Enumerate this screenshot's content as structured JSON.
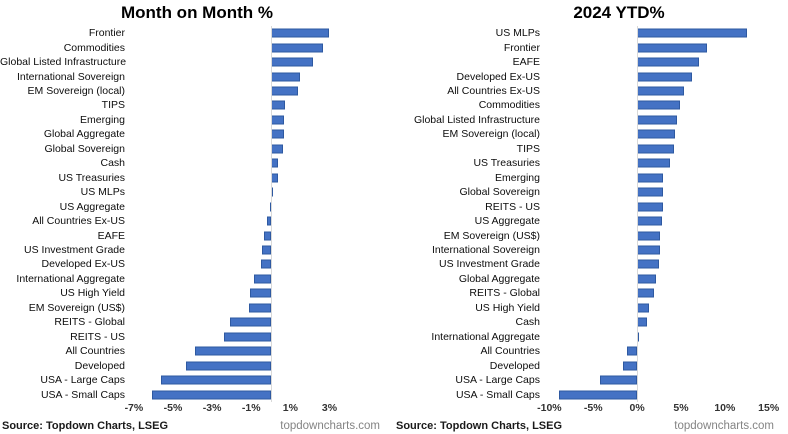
{
  "page": {
    "background": "#ffffff"
  },
  "chart_data": [
    {
      "type": "bar",
      "orientation": "horizontal",
      "title": "Month on Month %",
      "source": "Source: Topdown Charts, LSEG",
      "watermark": "topdowncharts.com",
      "bar_color": "#4472C4",
      "bar_border_color": "#2E59A1",
      "axis_line_color": "#D9D9D9",
      "grid": false,
      "legend": false,
      "xlim": [
        -7.2,
        6.3
      ],
      "ticks": [
        {
          "label": "-7%",
          "value": -7
        },
        {
          "label": "-5%",
          "value": -5
        },
        {
          "label": "-3%",
          "value": -3
        },
        {
          "label": "-1%",
          "value": -1
        },
        {
          "label": "1%",
          "value": 1
        },
        {
          "label": "3%",
          "value": 3
        }
      ],
      "categories": [
        "Frontier",
        "Commodities",
        "Global Listed Infrastructure",
        "International Sovereign",
        "EM Sovereign (local)",
        "TIPS",
        "Emerging",
        "Global Aggregate",
        "Global Sovereign",
        "Cash",
        "US Treasuries",
        "US MLPs",
        "US Aggregate",
        "All Countries Ex-US",
        "EAFE",
        "US Investment Grade",
        "Developed Ex-US",
        "International Aggregate",
        "US High Yield",
        "EM Sovereign (US$)",
        "REITS - Global",
        "REITS - US",
        "All Countries",
        "Developed",
        "USA - Large Caps",
        "USA - Small Caps"
      ],
      "values": [
        3.0,
        2.65,
        2.15,
        1.5,
        1.4,
        0.72,
        0.7,
        0.68,
        0.6,
        0.38,
        0.35,
        0.08,
        -0.05,
        -0.2,
        -0.35,
        -0.45,
        -0.5,
        -0.85,
        -1.05,
        -1.1,
        -2.1,
        -2.4,
        -3.9,
        -4.35,
        -5.6,
        -6.1
      ]
    },
    {
      "type": "bar",
      "orientation": "horizontal",
      "title": "2024 YTD%",
      "source": "Source: Topdown Charts, LSEG",
      "watermark": "topdowncharts.com",
      "bar_color": "#4472C4",
      "bar_border_color": "#2E59A1",
      "axis_line_color": "#D9D9D9",
      "grid": false,
      "legend": false,
      "xlim": [
        -10.5,
        17.2
      ],
      "ticks": [
        {
          "label": "-10%",
          "value": -10
        },
        {
          "label": "-5%",
          "value": -5
        },
        {
          "label": "0%",
          "value": 0
        },
        {
          "label": "5%",
          "value": 5
        },
        {
          "label": "10%",
          "value": 10
        },
        {
          "label": "15%",
          "value": 15
        }
      ],
      "categories": [
        "US MLPs",
        "Frontier",
        "EAFE",
        "Developed Ex-US",
        "All Countries Ex-US",
        "Commodities",
        "Global Listed Infrastructure",
        "EM Sovereign (local)",
        "TIPS",
        "US Treasuries",
        "Emerging",
        "Global Sovereign",
        "REITS - US",
        "US Aggregate",
        "EM Sovereign (US$)",
        "International Sovereign",
        "US Investment Grade",
        "Global Aggregate",
        "REITS - Global",
        "US High Yield",
        "Cash",
        "International Aggregate",
        "All Countries",
        "Developed",
        "USA - Large Caps",
        "USA - Small Caps"
      ],
      "values": [
        12.5,
        8.0,
        7.0,
        6.3,
        5.4,
        4.9,
        4.6,
        4.35,
        4.25,
        3.8,
        3.0,
        2.9,
        2.9,
        2.8,
        2.65,
        2.6,
        2.5,
        2.2,
        1.9,
        1.3,
        1.1,
        0.2,
        -1.2,
        -1.6,
        -4.2,
        -8.9
      ]
    }
  ]
}
